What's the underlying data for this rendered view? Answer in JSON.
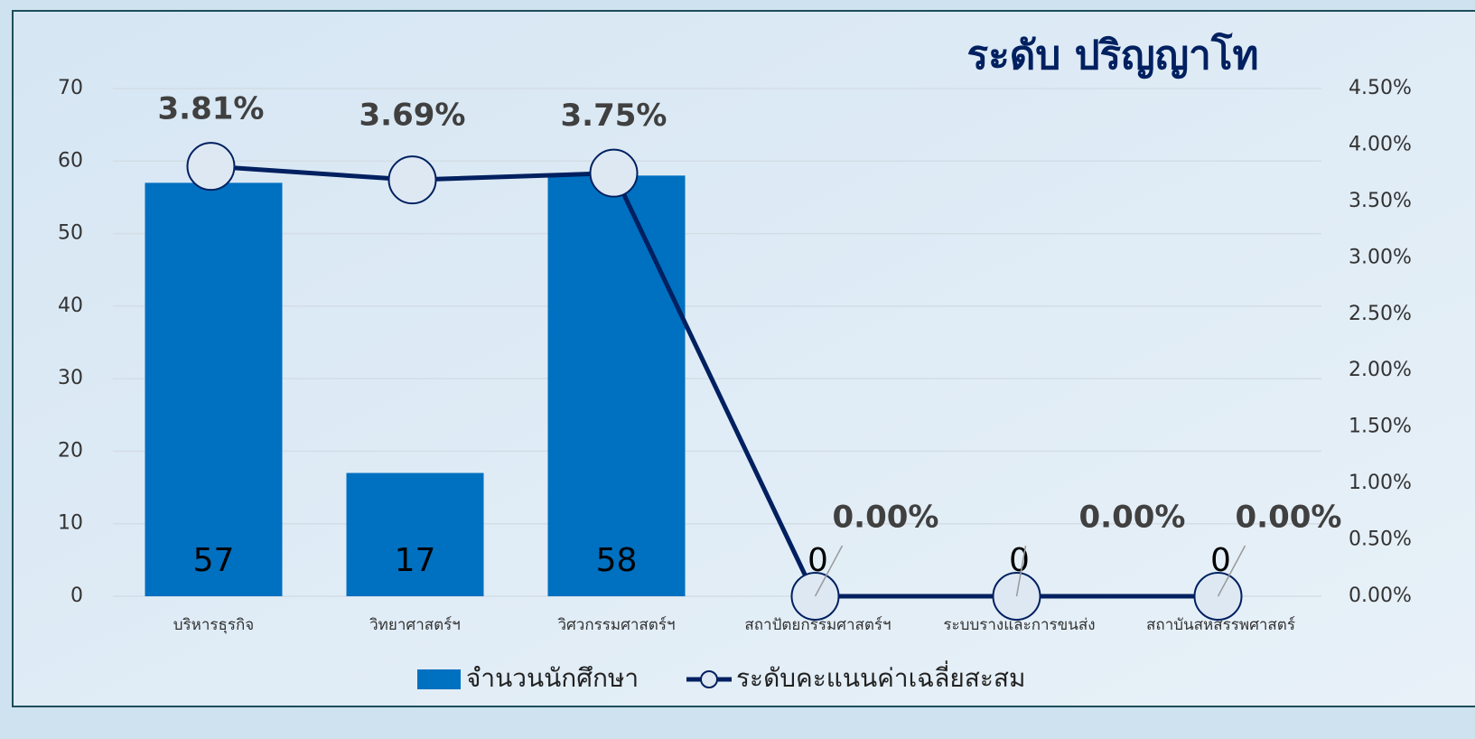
{
  "chart_data": {
    "type": "combo",
    "title": "ระดับ ปริญญาโท",
    "categories": [
      "บริหารธุรกิจ",
      "วิทยาศาสตร์ฯ",
      "วิศวกรรมศาสตร์ฯ",
      "สถาปัตยกรรมศาสตร์ฯ",
      "ระบบรางและการขนส่ง",
      "สถาบันสหสรรพศาสตร์"
    ],
    "series": [
      {
        "name": "จำนวนนักศึกษา",
        "type": "bar",
        "color": "#0070c0",
        "values": [
          57,
          17,
          58,
          0,
          0,
          0
        ]
      },
      {
        "name": "ระดับคะแนนค่าเฉลี่ยสะสม",
        "type": "line",
        "axis": "y2",
        "color": "#002060",
        "values": [
          3.81,
          3.69,
          3.75,
          0,
          0,
          0
        ],
        "value_labels": [
          "3.81%",
          "3.69%",
          "3.75%",
          "0.00%",
          "0.00%",
          "0.00%"
        ]
      }
    ],
    "ylim": [
      0,
      70
    ],
    "yticks": [
      0,
      10,
      20,
      30,
      40,
      50,
      60,
      70
    ],
    "y2lim": [
      0,
      4.5
    ],
    "y2ticks": [
      {
        "value": 0,
        "label": "0.00%"
      },
      {
        "value": 0.5,
        "label": "0.50%"
      },
      {
        "value": 1,
        "label": "1.00%"
      },
      {
        "value": 1.5,
        "label": "1.50%"
      },
      {
        "value": 2,
        "label": "2.00%"
      },
      {
        "value": 2.5,
        "label": "2.50%"
      },
      {
        "value": 3,
        "label": "3.00%"
      },
      {
        "value": 3.5,
        "label": "3.50%"
      },
      {
        "value": 4,
        "label": "4.00%"
      },
      {
        "value": 4.5,
        "label": "4.50%"
      }
    ],
    "grid": true
  }
}
